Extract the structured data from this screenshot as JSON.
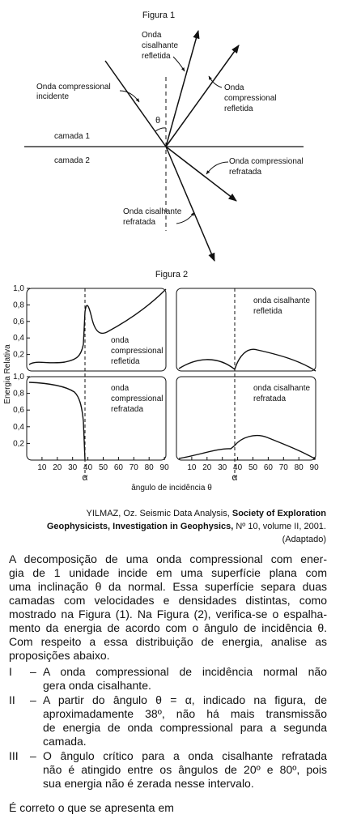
{
  "figure1": {
    "title": "Figura 1",
    "layer1": "camada 1",
    "layer2": "camada 2",
    "angle": "θ",
    "labels": [
      {
        "lines": [
          "Onda compressional",
          "incidente"
        ]
      },
      {
        "lines": [
          "Onda",
          "cisalhante",
          "refletida"
        ]
      },
      {
        "lines": [
          "Onda",
          "compressional",
          "refletida"
        ]
      },
      {
        "lines": [
          "Onda compressional",
          "refratada"
        ]
      },
      {
        "lines": [
          "Onda cisalhante",
          "refratada"
        ]
      }
    ]
  },
  "figure2": {
    "title": "Figura 2",
    "ylabel": "Energia Relativa",
    "xlabel": "ângulo de incidência θ",
    "critical": "α",
    "xticks": [
      10,
      20,
      30,
      40,
      50,
      60,
      70,
      80,
      90
    ],
    "yticks": [
      {
        "value": 1.0,
        "label": "1,0"
      },
      {
        "value": 0.8,
        "label": "0,8"
      },
      {
        "value": 0.6,
        "label": "0,6"
      },
      {
        "value": 0.4,
        "label": "0,4"
      },
      {
        "value": 0.2,
        "label": "0,2"
      }
    ],
    "panels": [
      {
        "lines": [
          "onda",
          "compressional",
          "refletida"
        ]
      },
      {
        "lines": [
          "onda cisalhante",
          "refletida"
        ]
      },
      {
        "lines": [
          "onda",
          "compressional",
          "refratada"
        ]
      },
      {
        "lines": [
          "onda cisalhante",
          "refratada"
        ]
      }
    ]
  },
  "citation": {
    "lines": [
      [
        "YILMAZ, Oz. Seismic Data Analysis, ",
        "Society of Exploration"
      ],
      [
        "Geophysicists, Investigation in Geophysics,",
        " Nº 10, volume II, 2001."
      ],
      [
        "(Adaptado)"
      ]
    ]
  },
  "paragraph": [
    "A decomposição de uma onda compressional com ener-",
    "gia de 1 unidade incide em uma superfície plana com",
    "uma inclinação θ da normal. Essa superfície separa duas",
    "camadas com velocidades e densidades distintas, como",
    "mostrado na Figura (1). Na Figura (2), verifica-se o espalha-",
    "mento da energia de acordo com o ângulo de incidência θ.",
    "Com respeito a essa distribuição de energia, analise as",
    "proposições abaixo."
  ],
  "items": [
    {
      "label": "I",
      "dash": "–",
      "lines": [
        "A onda compressional de incidência normal não",
        "gera onda cisalhante."
      ]
    },
    {
      "label": "II",
      "dash": "–",
      "lines": [
        "A partir do ângulo θ = α, indicado na figura, de",
        "aproximadamente 38º, não há mais transmissão",
        "de energia de onda compressional para a segunda",
        "camada."
      ]
    },
    {
      "label": "III",
      "dash": "–",
      "lines": [
        "O ângulo crítico para a onda cisalhante refratada",
        "não é atingido entre os ângulos de 20º e 80º, pois",
        "sua energia não é zerada nesse intervalo."
      ]
    }
  ],
  "question": "É correto o que se apresenta em"
}
